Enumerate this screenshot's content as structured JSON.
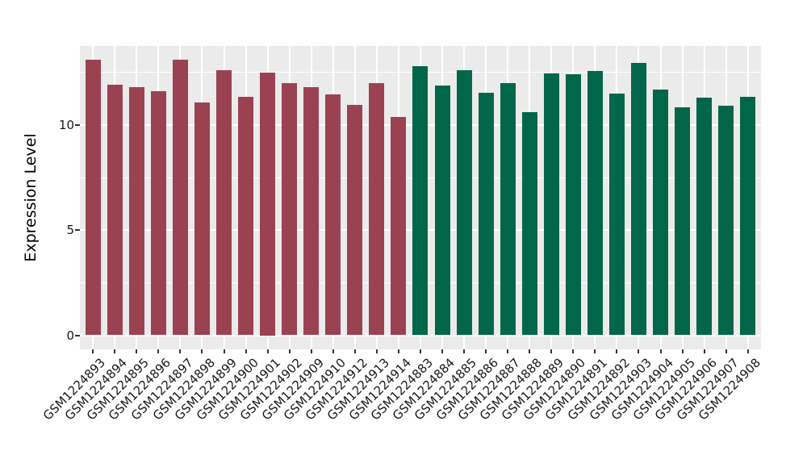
{
  "chart_data": {
    "type": "bar",
    "title": "",
    "xlabel": "",
    "ylabel": "Expression Level",
    "yticks": [
      0,
      5,
      10
    ],
    "yticks_minor": [
      2.5,
      7.5,
      12.5
    ],
    "ylim": [
      0,
      13.76
    ],
    "grid": "on",
    "legend": "none",
    "panel_background": "#EBEBEB",
    "gridline_color": "#FFFFFF",
    "tick_color": "#333333",
    "group_colors": {
      "maroon": "#9B4252",
      "green": "#02664A"
    },
    "samples": [
      {
        "label": "GSM1224893",
        "value": 13.12,
        "group": "maroon"
      },
      {
        "label": "GSM1224894",
        "value": 11.93,
        "group": "maroon"
      },
      {
        "label": "GSM1224895",
        "value": 11.8,
        "group": "maroon"
      },
      {
        "label": "GSM1224896",
        "value": 11.63,
        "group": "maroon"
      },
      {
        "label": "GSM1224897",
        "value": 13.12,
        "group": "maroon"
      },
      {
        "label": "GSM1224898",
        "value": 11.07,
        "group": "maroon"
      },
      {
        "label": "GSM1224899",
        "value": 12.6,
        "group": "maroon"
      },
      {
        "label": "GSM1224900",
        "value": 11.33,
        "group": "maroon"
      },
      {
        "label": "GSM1224901",
        "value": 12.5,
        "group": "maroon"
      },
      {
        "label": "GSM1224902",
        "value": 11.99,
        "group": "maroon"
      },
      {
        "label": "GSM1224909",
        "value": 11.8,
        "group": "maroon"
      },
      {
        "label": "GSM1224910",
        "value": 11.46,
        "group": "maroon"
      },
      {
        "label": "GSM1224912",
        "value": 10.95,
        "group": "maroon"
      },
      {
        "label": "GSM1224913",
        "value": 12.01,
        "group": "maroon"
      },
      {
        "label": "GSM1224914",
        "value": 10.38,
        "group": "maroon"
      },
      {
        "label": "GSM1224883",
        "value": 12.8,
        "group": "green"
      },
      {
        "label": "GSM1224884",
        "value": 11.87,
        "group": "green"
      },
      {
        "label": "GSM1224885",
        "value": 12.6,
        "group": "green"
      },
      {
        "label": "GSM1224886",
        "value": 11.54,
        "group": "green"
      },
      {
        "label": "GSM1224887",
        "value": 12.01,
        "group": "green"
      },
      {
        "label": "GSM1224888",
        "value": 10.62,
        "group": "green"
      },
      {
        "label": "GSM1224889",
        "value": 12.45,
        "group": "green"
      },
      {
        "label": "GSM1224890",
        "value": 12.4,
        "group": "green"
      },
      {
        "label": "GSM1224891",
        "value": 12.59,
        "group": "green"
      },
      {
        "label": "GSM1224892",
        "value": 11.5,
        "group": "green"
      },
      {
        "label": "GSM1224903",
        "value": 12.96,
        "group": "green"
      },
      {
        "label": "GSM1224904",
        "value": 11.67,
        "group": "green"
      },
      {
        "label": "GSM1224905",
        "value": 10.86,
        "group": "green"
      },
      {
        "label": "GSM1224906",
        "value": 11.31,
        "group": "green"
      },
      {
        "label": "GSM1224907",
        "value": 10.92,
        "group": "green"
      },
      {
        "label": "GSM1224908",
        "value": 11.35,
        "group": "green"
      }
    ]
  }
}
